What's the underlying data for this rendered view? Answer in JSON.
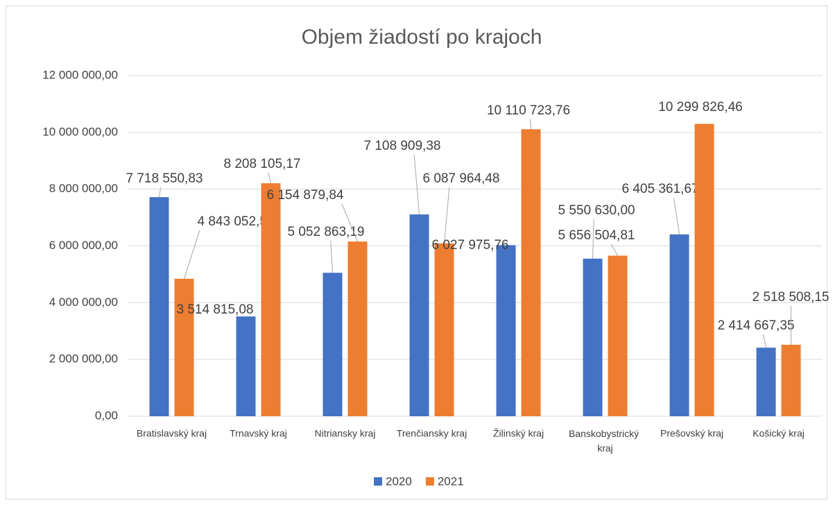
{
  "chart_data": {
    "type": "bar",
    "title": "Objem žiadostí po krajoch",
    "categories": [
      "Bratislavský kraj",
      "Trnavský kraj",
      "Nitriansky kraj",
      "Trenčiansky kraj",
      "Žilinský kraj",
      "Banskobystrický kraj",
      "Prešovský kraj",
      "Košický kraj"
    ],
    "series": [
      {
        "name": "2020",
        "color": "#4472c4",
        "values": [
          7718550.83,
          3514815.08,
          5052863.19,
          7108909.38,
          6027975.76,
          5550630.0,
          6405361.67,
          2414667.35
        ],
        "value_labels": [
          "7 718 550,83",
          "3 514 815,08",
          "5 052 863,19",
          "7 108 909,38",
          "6 027 975,76",
          "5 550 630,00",
          "6 405 361,67",
          "2 414 667,35"
        ]
      },
      {
        "name": "2021",
        "color": "#ed7d31",
        "values": [
          4843052.53,
          8208105.17,
          6154879.84,
          6087964.48,
          10110723.76,
          5656504.81,
          10299826.46,
          2518508.15
        ],
        "value_labels": [
          "4 843 052,53",
          "8 208 105,17",
          "6 154 879,84",
          "6 087 964,48",
          "10 110 723,76",
          "5 656 504,81",
          "10 299 826,46",
          "2 518 508,15"
        ]
      }
    ],
    "ylim": [
      0,
      12000000
    ],
    "yticks": [
      {
        "value": 0,
        "label": "0,00"
      },
      {
        "value": 2000000,
        "label": "2 000 000,00"
      },
      {
        "value": 4000000,
        "label": "4 000 000,00"
      },
      {
        "value": 6000000,
        "label": "6 000 000,00"
      },
      {
        "value": 8000000,
        "label": "8 000 000,00"
      },
      {
        "value": 10000000,
        "label": "10 000 000,00"
      },
      {
        "value": 12000000,
        "label": "12 000 000,00"
      }
    ],
    "grid": true,
    "legend": "bottom"
  }
}
